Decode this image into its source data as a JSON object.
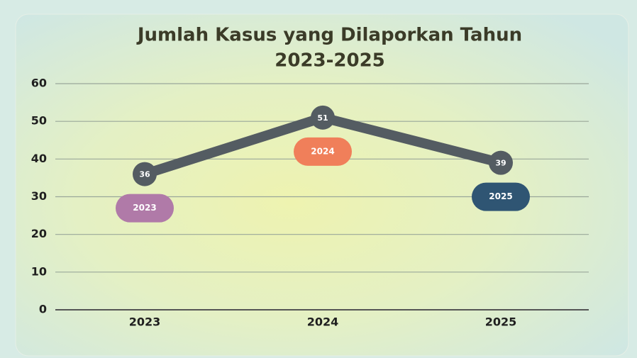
{
  "chart_data": {
    "type": "line",
    "title": [
      "Jumlah Kasus yang Dilaporkan Tahun",
      "2023-2025"
    ],
    "categories": [
      "2023",
      "2024",
      "2025"
    ],
    "values": [
      36,
      51,
      39
    ],
    "color": "#545c62",
    "label_colors": [
      "#b07aa8",
      "#f07f5a",
      "#2f5573"
    ],
    "ylim": [
      0,
      60
    ],
    "yticks": [
      0,
      10,
      20,
      30,
      40,
      50,
      60
    ],
    "grid": true
  }
}
